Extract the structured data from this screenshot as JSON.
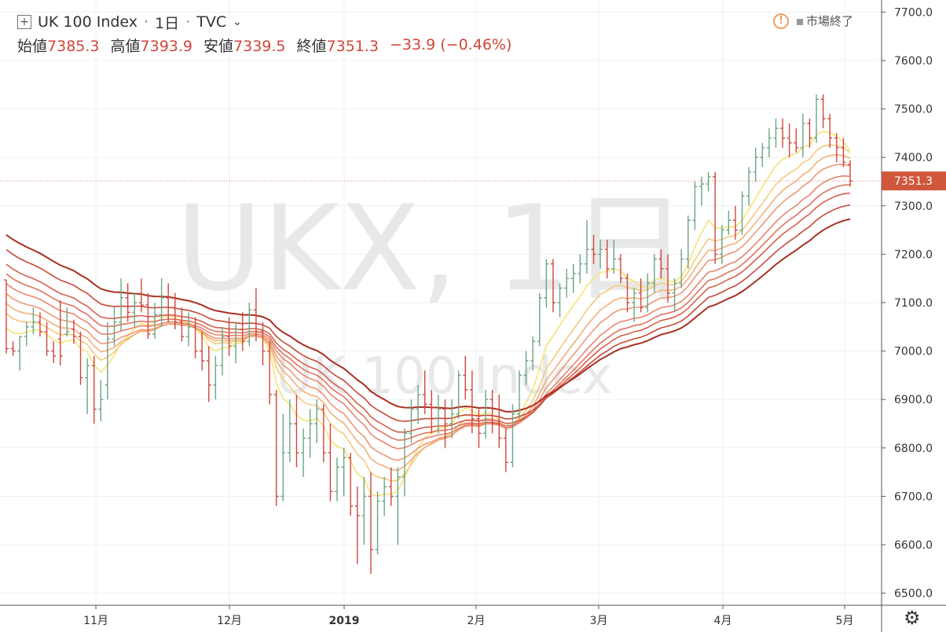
{
  "header": {
    "symbol_title": "UK 100 Index",
    "interval": "1日",
    "exchange": "TVC",
    "ohlc": {
      "open_label": "始値",
      "open": "7385.3",
      "high_label": "高値",
      "high": "7393.9",
      "low_label": "安値",
      "low": "7339.5",
      "close_label": "終値",
      "close": "7351.3",
      "change": "−33.9 (−0.46%)"
    }
  },
  "status": {
    "market_label": "市場終了"
  },
  "watermark": {
    "main": "UKX, 1日",
    "sub": "UK 100 Index"
  },
  "price_label": "7351.3",
  "icons": {
    "symbol_box": "plus-square-icon",
    "warning": "exclamation-circle-icon",
    "settings": "gear-icon"
  },
  "colors": {
    "up": "#6ba583",
    "down": "#d0463a",
    "last_price": "#d0563c",
    "grid": "#eef0f3",
    "ribbon": [
      "#f5e476",
      "#f5ca7c",
      "#f2b07a",
      "#ee9877",
      "#e98570",
      "#e0725e",
      "#d65f4c",
      "#c74a3a",
      "#a83020"
    ]
  },
  "chart_data": {
    "type": "candlestick",
    "title": "UK 100 Index",
    "ylim": [
      6475,
      7725
    ],
    "y_ticks": [
      "6500.0",
      "6600.0",
      "6700.0",
      "6800.0",
      "6900.0",
      "7000.0",
      "7100.0",
      "7200.0",
      "7300.0",
      "7400.0",
      "7500.0",
      "7600.0",
      "7700.0"
    ],
    "x_ticks": [
      "11月",
      "12月",
      "2019",
      "2月",
      "3月",
      "4月",
      "5月"
    ],
    "last_price": 7351.3,
    "ohlc": [
      [
        7147,
        7147,
        6995,
        7005
      ],
      [
        7005,
        7020,
        6990,
        7000
      ],
      [
        7000,
        7030,
        6960,
        7030
      ],
      [
        7030,
        7060,
        7010,
        7050
      ],
      [
        7050,
        7090,
        7035,
        7060
      ],
      [
        7060,
        7080,
        7030,
        7040
      ],
      [
        7040,
        7060,
        6990,
        7000
      ],
      [
        7000,
        7020,
        6975,
        6990
      ],
      [
        7025,
        7105,
        6970,
        6990
      ],
      [
        7035,
        7090,
        7030,
        7040
      ],
      [
        7045,
        7065,
        7015,
        7030
      ],
      [
        7030,
        7040,
        6930,
        6945
      ],
      [
        6945,
        6985,
        6870,
        6970
      ],
      [
        6970,
        6990,
        6850,
        6880
      ],
      [
        6880,
        6940,
        6855,
        6900
      ],
      [
        6930,
        7060,
        6900,
        7025
      ],
      [
        7025,
        7090,
        7010,
        7060
      ],
      [
        7060,
        7150,
        7040,
        7110
      ],
      [
        7110,
        7140,
        7060,
        7080
      ],
      [
        7080,
        7120,
        7050,
        7100
      ],
      [
        7100,
        7150,
        7080,
        7095
      ],
      [
        7095,
        7120,
        7025,
        7035
      ],
      [
        7035,
        7100,
        7025,
        7075
      ],
      [
        7075,
        7150,
        7050,
        7110
      ],
      [
        7110,
        7140,
        7060,
        7090
      ],
      [
        7090,
        7120,
        7045,
        7060
      ],
      [
        7060,
        7090,
        7020,
        7030
      ],
      [
        7030,
        7080,
        7010,
        7050
      ],
      [
        7050,
        7070,
        6985,
        7000
      ],
      [
        7000,
        7040,
        6960,
        6980
      ],
      [
        6980,
        7010,
        6895,
        6930
      ],
      [
        6930,
        6990,
        6900,
        6970
      ],
      [
        6970,
        7050,
        6950,
        7030
      ],
      [
        7030,
        7070,
        6990,
        7010
      ],
      [
        7010,
        7060,
        6975,
        7045
      ],
      [
        7045,
        7080,
        7000,
        7020
      ],
      [
        7020,
        7100,
        7010,
        7085
      ],
      [
        7085,
        7130,
        7020,
        7040
      ],
      [
        7040,
        7060,
        6970,
        7000
      ],
      [
        7000,
        7020,
        6890,
        6910
      ],
      [
        6910,
        6920,
        6680,
        6700
      ],
      [
        6700,
        6870,
        6690,
        6790
      ],
      [
        6790,
        6900,
        6770,
        6850
      ],
      [
        6850,
        6910,
        6760,
        6790
      ],
      [
        6790,
        6840,
        6740,
        6820
      ],
      [
        6820,
        6880,
        6780,
        6850
      ],
      [
        6850,
        6900,
        6810,
        6880
      ],
      [
        6880,
        6890,
        6770,
        6790
      ],
      [
        6790,
        6850,
        6690,
        6710
      ],
      [
        6710,
        6780,
        6690,
        6760
      ],
      [
        6760,
        6800,
        6700,
        6780
      ],
      [
        6780,
        6790,
        6660,
        6680
      ],
      [
        6680,
        6720,
        6560,
        6660
      ],
      [
        6660,
        6740,
        6600,
        6700
      ],
      [
        6700,
        6750,
        6540,
        6590
      ],
      [
        6590,
        6710,
        6580,
        6690
      ],
      [
        6690,
        6740,
        6660,
        6720
      ],
      [
        6720,
        6760,
        6680,
        6700
      ],
      [
        6700,
        6760,
        6600,
        6740
      ],
      [
        6740,
        6840,
        6700,
        6830
      ],
      [
        6830,
        6900,
        6810,
        6880
      ],
      [
        6880,
        6930,
        6850,
        6910
      ],
      [
        6910,
        6960,
        6870,
        6890
      ],
      [
        6890,
        6920,
        6830,
        6860
      ],
      [
        6860,
        6910,
        6830,
        6880
      ],
      [
        6880,
        6900,
        6800,
        6850
      ],
      [
        6850,
        6900,
        6820,
        6870
      ],
      [
        6870,
        6960,
        6860,
        6950
      ],
      [
        6950,
        6990,
        6900,
        6920
      ],
      [
        6920,
        6960,
        6830,
        6860
      ],
      [
        6860,
        6880,
        6800,
        6830
      ],
      [
        6830,
        6920,
        6820,
        6900
      ],
      [
        6900,
        6920,
        6830,
        6850
      ],
      [
        6850,
        6910,
        6800,
        6820
      ],
      [
        6820,
        6840,
        6750,
        6770
      ],
      [
        6770,
        6890,
        6760,
        6870
      ],
      [
        6870,
        6960,
        6860,
        6950
      ],
      [
        6950,
        7000,
        6930,
        6980
      ],
      [
        6980,
        7030,
        6960,
        7020
      ],
      [
        7020,
        7120,
        7010,
        7110
      ],
      [
        7110,
        7190,
        7090,
        7180
      ],
      [
        7180,
        7190,
        7080,
        7100
      ],
      [
        7100,
        7140,
        7070,
        7130
      ],
      [
        7130,
        7170,
        7110,
        7150
      ],
      [
        7150,
        7180,
        7120,
        7160
      ],
      [
        7160,
        7200,
        7140,
        7180
      ],
      [
        7180,
        7270,
        7160,
        7210
      ],
      [
        7210,
        7240,
        7180,
        7200
      ],
      [
        7200,
        7230,
        7170,
        7210
      ],
      [
        7210,
        7230,
        7150,
        7170
      ],
      [
        7170,
        7230,
        7160,
        7190
      ],
      [
        7190,
        7200,
        7140,
        7150
      ],
      [
        7150,
        7160,
        7080,
        7100
      ],
      [
        7100,
        7130,
        7060,
        7120
      ],
      [
        7120,
        7150,
        7080,
        7090
      ],
      [
        7090,
        7160,
        7080,
        7140
      ],
      [
        7140,
        7200,
        7120,
        7190
      ],
      [
        7190,
        7210,
        7150,
        7170
      ],
      [
        7170,
        7200,
        7100,
        7120
      ],
      [
        7120,
        7150,
        7080,
        7140
      ],
      [
        7140,
        7210,
        7130,
        7190
      ],
      [
        7190,
        7280,
        7170,
        7270
      ],
      [
        7270,
        7350,
        7250,
        7340
      ],
      [
        7340,
        7360,
        7300,
        7345
      ],
      [
        7345,
        7370,
        7330,
        7360
      ],
      [
        7360,
        7370,
        7180,
        7200
      ],
      [
        7200,
        7260,
        7180,
        7250
      ],
      [
        7250,
        7290,
        7240,
        7270
      ],
      [
        7270,
        7300,
        7230,
        7250
      ],
      [
        7250,
        7330,
        7240,
        7320
      ],
      [
        7320,
        7380,
        7300,
        7370
      ],
      [
        7370,
        7420,
        7350,
        7400
      ],
      [
        7400,
        7430,
        7380,
        7420
      ],
      [
        7420,
        7460,
        7400,
        7440
      ],
      [
        7440,
        7480,
        7420,
        7460
      ],
      [
        7460,
        7480,
        7420,
        7440
      ],
      [
        7440,
        7470,
        7400,
        7430
      ],
      [
        7430,
        7460,
        7410,
        7420
      ],
      [
        7420,
        7490,
        7400,
        7470
      ],
      [
        7470,
        7480,
        7420,
        7440
      ],
      [
        7440,
        7530,
        7430,
        7520
      ],
      [
        7520,
        7530,
        7460,
        7480
      ],
      [
        7480,
        7490,
        7420,
        7440
      ],
      [
        7440,
        7450,
        7390,
        7420
      ],
      [
        7420,
        7440,
        7380,
        7390
      ],
      [
        7385.3,
        7393.9,
        7339.5,
        7351.3
      ]
    ]
  }
}
